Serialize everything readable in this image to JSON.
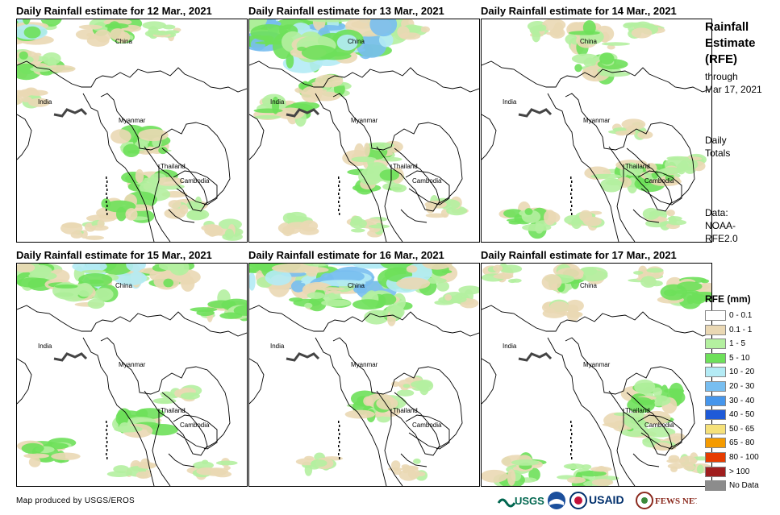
{
  "panels": [
    {
      "title": "Daily Rainfall estimate for 12 Mar., 2021",
      "rain": [
        [
          0.04,
          0.04,
          3
        ],
        [
          0.1,
          0.2,
          2
        ],
        [
          0.4,
          0.05,
          2
        ],
        [
          0.65,
          0.05,
          1
        ],
        [
          0.05,
          0.35,
          1
        ],
        [
          0.55,
          0.55,
          2
        ],
        [
          0.6,
          0.75,
          2
        ],
        [
          0.45,
          0.85,
          2
        ],
        [
          0.75,
          0.85,
          1
        ],
        [
          0.9,
          0.95,
          1
        ],
        [
          0.3,
          0.95,
          1
        ]
      ]
    },
    {
      "title": "Daily Rainfall estimate for 13 Mar., 2021",
      "rain": [
        [
          0.15,
          0.05,
          4
        ],
        [
          0.45,
          0.07,
          4
        ],
        [
          0.3,
          0.15,
          3
        ],
        [
          0.7,
          0.05,
          1
        ],
        [
          0.15,
          0.4,
          2
        ],
        [
          0.3,
          0.3,
          2
        ],
        [
          0.55,
          0.6,
          2
        ],
        [
          0.58,
          0.72,
          2
        ],
        [
          0.2,
          0.92,
          1
        ],
        [
          0.5,
          0.93,
          1
        ],
        [
          0.85,
          0.85,
          1
        ]
      ]
    },
    {
      "title": "Daily Rainfall estimate for 14 Mar., 2021",
      "rain": [
        [
          0.3,
          0.05,
          1
        ],
        [
          0.5,
          0.08,
          2
        ],
        [
          0.7,
          0.05,
          1
        ],
        [
          0.5,
          0.22,
          2
        ],
        [
          0.65,
          0.5,
          1
        ],
        [
          0.6,
          0.7,
          2
        ],
        [
          0.75,
          0.7,
          2
        ],
        [
          0.88,
          0.65,
          1
        ],
        [
          0.2,
          0.9,
          2
        ],
        [
          0.45,
          0.9,
          1
        ],
        [
          0.8,
          0.9,
          1
        ]
      ]
    },
    {
      "title": "Daily Rainfall estimate for 15 Mar., 2021",
      "rain": [
        [
          0.1,
          0.05,
          2
        ],
        [
          0.4,
          0.05,
          3
        ],
        [
          0.65,
          0.05,
          2
        ],
        [
          0.9,
          0.2,
          2
        ],
        [
          0.3,
          0.15,
          2
        ],
        [
          0.15,
          0.85,
          2
        ],
        [
          0.5,
          0.92,
          1
        ],
        [
          0.55,
          0.72,
          2
        ],
        [
          0.7,
          0.6,
          1
        ],
        [
          0.85,
          0.92,
          1
        ]
      ]
    },
    {
      "title": "Daily Rainfall estimate for 16 Mar., 2021",
      "rain": [
        [
          0.15,
          0.03,
          4
        ],
        [
          0.45,
          0.05,
          4
        ],
        [
          0.75,
          0.05,
          3
        ],
        [
          0.3,
          0.15,
          2
        ],
        [
          0.6,
          0.2,
          2
        ],
        [
          0.9,
          0.15,
          1
        ],
        [
          0.55,
          0.65,
          2
        ],
        [
          0.7,
          0.55,
          1
        ],
        [
          0.3,
          0.9,
          1
        ],
        [
          0.7,
          0.92,
          1
        ]
      ]
    },
    {
      "title": "Daily Rainfall estimate for 17 Mar., 2021",
      "rain": [
        [
          0.1,
          0.05,
          1
        ],
        [
          0.4,
          0.06,
          2
        ],
        [
          0.7,
          0.06,
          1
        ],
        [
          0.9,
          0.12,
          2
        ],
        [
          0.35,
          0.2,
          1
        ],
        [
          0.75,
          0.6,
          2
        ],
        [
          0.68,
          0.72,
          2
        ],
        [
          0.8,
          0.8,
          1
        ],
        [
          0.15,
          0.93,
          2
        ],
        [
          0.45,
          0.95,
          2
        ],
        [
          0.9,
          0.9,
          1
        ]
      ]
    }
  ],
  "map_labels": {
    "china": "China",
    "india": "India",
    "myanmar": "Myanmar",
    "thailand": "Thailand",
    "cambodia": "Cambodia"
  },
  "side": {
    "title_line1": "Rainfall",
    "title_line2": "Estimate",
    "title_line3": "(RFE)",
    "through_line1": "through",
    "through_line2": "Mar 17, 2021",
    "daily_line1": "Daily",
    "daily_line2": "Totals",
    "data_line1": "Data:",
    "data_line2": "NOAA-",
    "data_line3": "RFE2.0"
  },
  "legend": {
    "title": "RFE (mm)",
    "items": [
      {
        "label": "0 - 0.1",
        "color": "#ffffff"
      },
      {
        "label": "0.1 - 1",
        "color": "#ead8b4"
      },
      {
        "label": "1 - 5",
        "color": "#b4f0a0"
      },
      {
        "label": "5 - 10",
        "color": "#6ee05a"
      },
      {
        "label": "10 - 20",
        "color": "#b4ebf5"
      },
      {
        "label": "20 - 30",
        "color": "#78bef0"
      },
      {
        "label": "30 - 40",
        "color": "#4696ec"
      },
      {
        "label": "40 - 50",
        "color": "#1e5ad8"
      },
      {
        "label": "50 - 65",
        "color": "#f5e17a"
      },
      {
        "label": "65 - 80",
        "color": "#f59b00"
      },
      {
        "label": "80 - 100",
        "color": "#e63c00"
      },
      {
        "label": "> 100",
        "color": "#a01e1e"
      },
      {
        "label": "No Data",
        "color": "#8c8c8c"
      }
    ]
  },
  "credit": "Map produced by USGS/EROS",
  "logos": {
    "usgs": "USGS",
    "usaid": "USAID",
    "fewsnet": "FEWS NET"
  }
}
